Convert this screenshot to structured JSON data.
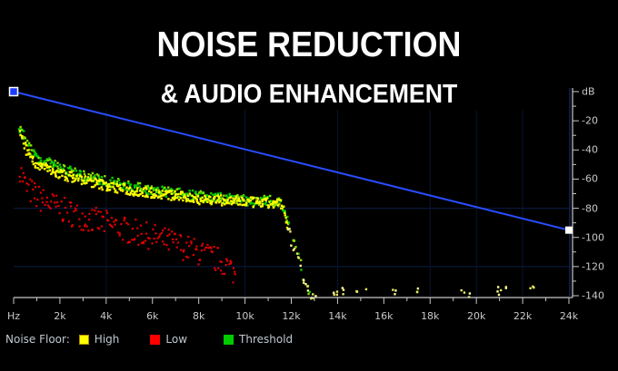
{
  "header": {
    "title": "NOISE REDUCTION",
    "subtitle": "& AUDIO ENHANCEMENT"
  },
  "legend": {
    "prefix": "Noise Floor:",
    "items": [
      {
        "label": "High",
        "color": "#ffff00"
      },
      {
        "label": "Low",
        "color": "#ff0000"
      },
      {
        "label": "Threshold",
        "color": "#00cc00"
      }
    ]
  },
  "colors": {
    "background": "#000000",
    "curve": "#2a4cff",
    "axis": "#c8c8c8",
    "grid": "#0a1a40"
  },
  "chart_data": {
    "type": "scatter",
    "title": "NOISE REDUCTION & AUDIO ENHANCEMENT",
    "xlabel": "Hz",
    "ylabel": "dB",
    "x_ticks": [
      "Hz",
      "2k",
      "4k",
      "6k",
      "8k",
      "10k",
      "12k",
      "14k",
      "16k",
      "18k",
      "20k",
      "22k",
      "24k"
    ],
    "y_ticks": [
      "dB",
      "-20",
      "-40",
      "-60",
      "-80",
      "-100",
      "-120",
      "-140"
    ],
    "xlim": [
      0,
      24000
    ],
    "ylim": [
      0,
      -140
    ],
    "grid": true,
    "legend_position": "bottom-left",
    "reduction_curve": {
      "points": [
        [
          0,
          0
        ],
        [
          24000,
          -95
        ]
      ],
      "color": "#2a4cff"
    },
    "series": [
      {
        "name": "Threshold",
        "color": "#00cc00",
        "x": [
          200,
          500,
          1000,
          2000,
          3000,
          4000,
          5000,
          6000,
          7000,
          8000,
          9000,
          10000,
          11000,
          11500,
          11800,
          12000,
          12300,
          12500,
          12800
        ],
        "y": [
          -22,
          -35,
          -45,
          -52,
          -57,
          -61,
          -64,
          -67,
          -69,
          -71,
          -72,
          -74,
          -74,
          -75,
          -88,
          -100,
          -112,
          -130,
          -138
        ]
      },
      {
        "name": "High",
        "color": "#ffff00",
        "x": [
          200,
          500,
          1000,
          2000,
          3000,
          4000,
          5000,
          6000,
          7000,
          8000,
          9000,
          10000,
          11000,
          11500,
          11800,
          12000,
          12300,
          12500,
          12800,
          14000,
          15000,
          16500,
          17500,
          19500,
          21000,
          22500
        ],
        "y": [
          -28,
          -40,
          -50,
          -56,
          -60,
          -64,
          -67,
          -69,
          -71,
          -73,
          -74,
          -75,
          -76,
          -76,
          -92,
          -104,
          -115,
          -130,
          -138,
          -137,
          -137,
          -136,
          -136,
          -137,
          -136,
          -136
        ]
      },
      {
        "name": "Low",
        "color": "#ff0000",
        "x": [
          200,
          500,
          1000,
          2000,
          3000,
          4000,
          5000,
          6000,
          7000,
          8000,
          9000,
          9600
        ],
        "y": [
          -52,
          -65,
          -72,
          -80,
          -86,
          -90,
          -95,
          -99,
          -104,
          -110,
          -116,
          -125
        ]
      }
    ]
  }
}
